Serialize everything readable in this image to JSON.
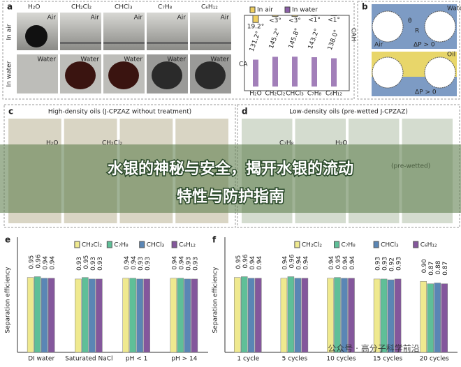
{
  "title_lines": [
    "水银的神秘与安全，揭开水银的流动",
    "特性与防护指南"
  ],
  "watermark": "公众号 · 高分子科学前沿",
  "panel_a": {
    "letter": "a",
    "columns": [
      "H₂O",
      "CH₂Cl₂",
      "CHCl₃",
      "C₇H₈",
      "C₆H₁₂"
    ],
    "rows": [
      "In air",
      "In water"
    ],
    "cell_labels": [
      "Air",
      "Water"
    ]
  },
  "panel_b": {
    "letter": "b",
    "labels": [
      "Water",
      "Air",
      "Oil",
      "θ",
      "R",
      "ΔP > 0"
    ]
  },
  "panel_c": {
    "letter": "c",
    "title": "High-density oils (J-CPZAZ without treatment)",
    "labels": [
      "H₂O",
      "CH₂Cl₂"
    ]
  },
  "panel_d": {
    "letter": "d",
    "title": "Low-density oils (pre-wetted J-CPZAZ)",
    "labels": [
      "C₇H₈",
      "H₂O",
      "(pre-wetted)"
    ]
  },
  "chart_data": [
    {
      "type": "contact",
      "ylabel": "CA",
      "y2label": "CAH",
      "categories": [
        "H₂O",
        "CH₂Cl₂",
        "CHCl₃",
        "C₇H₈",
        "C₆H₁₂"
      ],
      "ylim": [
        0,
        180
      ],
      "series": [
        {
          "name": "In air",
          "color": "#f0d060",
          "values": [
            19.2,
            3,
            3,
            1,
            1
          ],
          "value_labels": [
            "19.2°",
            "<3°",
            "<3°",
            "<1°",
            "<1°"
          ]
        },
        {
          "name": "In water",
          "color": "#8b5fa8",
          "values": [
            131.2,
            145.2,
            145.8,
            143.2,
            138.0
          ],
          "value_labels": [
            "131.2°",
            "145.2°",
            "145.8°",
            "143.2°",
            "138.0°"
          ]
        }
      ]
    },
    {
      "type": "bar",
      "letter": "e",
      "ylabel": "Separation efficiency",
      "ylim": [
        0,
        1
      ],
      "categories": [
        "DI water",
        "Saturated NaCl",
        "pH < 1",
        "pH > 14"
      ],
      "series": [
        {
          "name": "CH₂Cl₂",
          "color": "#efe98f",
          "values": [
            0.95,
            0.93,
            0.94,
            0.94
          ],
          "value_labels": [
            "0.95",
            "0.93",
            "0.94",
            "0.94"
          ]
        },
        {
          "name": "C₇H₈",
          "color": "#5fbf98",
          "values": [
            0.96,
            0.95,
            0.94,
            0.94
          ],
          "value_labels": [
            "0.96",
            "0.95",
            "0.94",
            "0.94"
          ]
        },
        {
          "name": "CHCl₃",
          "color": "#5a86b5",
          "values": [
            0.94,
            0.93,
            0.93,
            0.93
          ],
          "value_labels": [
            "0.94",
            "0.93",
            "0.93",
            "0.93"
          ]
        },
        {
          "name": "C₆H₁₂",
          "color": "#84579c",
          "values": [
            0.94,
            0.93,
            0.93,
            0.93
          ],
          "value_labels": [
            "0.94",
            "0.93",
            "0.93",
            "0.93"
          ]
        }
      ]
    },
    {
      "type": "bar",
      "letter": "f",
      "ylabel": "Separation efficiency",
      "ylim": [
        0,
        1
      ],
      "categories": [
        "1 cycle",
        "5 cycles",
        "10 cycles",
        "15 cycles",
        "20 cycles"
      ],
      "series": [
        {
          "name": "CH₂Cl₂",
          "color": "#efe98f",
          "values": [
            0.95,
            0.94,
            0.94,
            0.93,
            0.9
          ],
          "value_labels": [
            "0.95",
            "0.94",
            "0.94",
            "0.93",
            "0.90"
          ]
        },
        {
          "name": "C₇H₈",
          "color": "#5fbf98",
          "values": [
            0.96,
            0.96,
            0.95,
            0.93,
            0.87
          ],
          "value_labels": [
            "0.96",
            "0.96",
            "0.95",
            "0.93",
            "0.87"
          ]
        },
        {
          "name": "CHCl₃",
          "color": "#5a86b5",
          "values": [
            0.94,
            0.94,
            0.94,
            0.92,
            0.88
          ],
          "value_labels": [
            "0.94",
            "0.94",
            "0.94",
            "0.92",
            "0.88"
          ]
        },
        {
          "name": "C₆H₁₂",
          "color": "#84579c",
          "values": [
            0.94,
            0.94,
            0.94,
            0.93,
            0.87
          ],
          "value_labels": [
            "0.94",
            "0.94",
            "0.94",
            "0.93",
            "0.87"
          ]
        }
      ]
    }
  ]
}
